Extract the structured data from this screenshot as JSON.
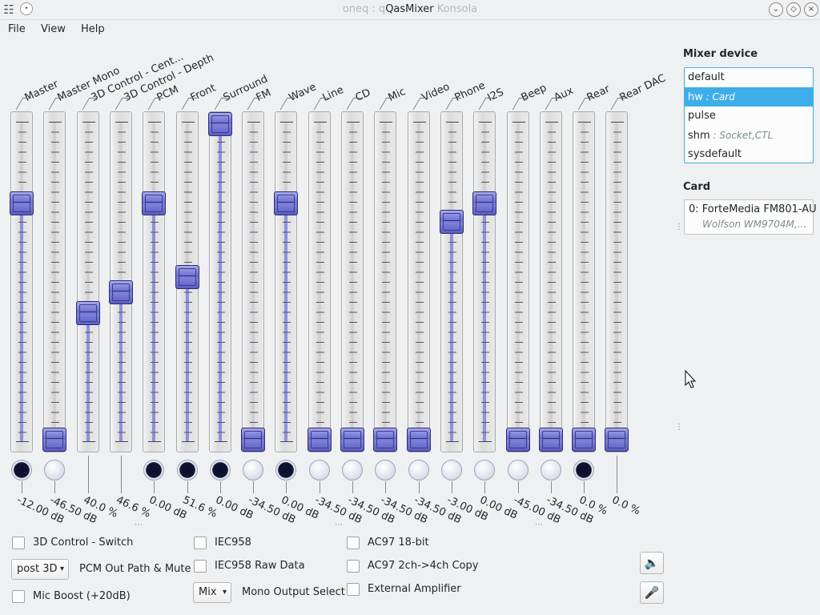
{
  "window": {
    "title_prefix": "oneq : q",
    "title": "QasMixer",
    "title_suffix": "Konsola",
    "buttons": [
      "chevron-down-icon",
      "chevron-up-icon",
      "close-icon"
    ]
  },
  "menu": {
    "file": "File",
    "view": "View",
    "help": "Help"
  },
  "channels": [
    {
      "name": "Master",
      "value": "-12.00 dB",
      "level": 0.75,
      "muted": true
    },
    {
      "name": "Master Mono",
      "value": "-46.50 dB",
      "level": 0.0,
      "muted": false
    },
    {
      "name": "3D Control - Cent...",
      "value": "40.0 %",
      "level": 0.4,
      "muted": null
    },
    {
      "name": "3D Control - Depth",
      "value": "46.6 %",
      "level": 0.466,
      "muted": null
    },
    {
      "name": "PCM",
      "value": "0.00 dB",
      "level": 0.75,
      "muted": true
    },
    {
      "name": "Front",
      "value": "51.6 %",
      "level": 0.516,
      "muted": true
    },
    {
      "name": "Surround",
      "value": "0.00 dB",
      "level": 1.0,
      "muted": true
    },
    {
      "name": "FM",
      "value": "-34.50 dB",
      "level": 0.0,
      "muted": false
    },
    {
      "name": "Wave",
      "value": "0.00 dB",
      "level": 0.75,
      "muted": true
    },
    {
      "name": "Line",
      "value": "-34.50 dB",
      "level": 0.0,
      "muted": false
    },
    {
      "name": "CD",
      "value": "-34.50 dB",
      "level": 0.0,
      "muted": false
    },
    {
      "name": "Mic",
      "value": "-34.50 dB",
      "level": 0.0,
      "muted": false
    },
    {
      "name": "Video",
      "value": "-34.50 dB",
      "level": 0.0,
      "muted": false
    },
    {
      "name": "Phone",
      "value": "-3.00 dB",
      "level": 0.69,
      "muted": false
    },
    {
      "name": "I2S",
      "value": "0.00 dB",
      "level": 0.75,
      "muted": false
    },
    {
      "name": "Beep",
      "value": "-45.00 dB",
      "level": 0.0,
      "muted": false
    },
    {
      "name": "Aux",
      "value": "-34.50 dB",
      "level": 0.0,
      "muted": false
    },
    {
      "name": "Rear",
      "value": "0.0 %",
      "level": 0.0,
      "muted": true
    },
    {
      "name": "Rear DAC",
      "value": "0.0 %",
      "level": 0.0,
      "muted": null
    }
  ],
  "switches": {
    "col1": {
      "sw3d": "3D Control - Switch",
      "combo_value": "post 3D",
      "pcm_label": "PCM Out Path & Mute",
      "mic_boost": "Mic Boost (+20dB)"
    },
    "col2": {
      "iec958": "IEC958",
      "iec958_raw": "IEC958 Raw Data",
      "combo_value": "Mix",
      "mono_label": "Mono Output Select"
    },
    "col3": {
      "ac97_18bit": "AC97 18-bit",
      "ac97_copy": "AC97 2ch->4ch Copy",
      "ext_amp": "External Amplifier"
    }
  },
  "mixer_device": {
    "heading": "Mixer device",
    "items": [
      {
        "name": "default",
        "sub": ""
      },
      {
        "name": "hw",
        "sub": " : Card",
        "selected": true
      },
      {
        "name": "pulse",
        "sub": ""
      },
      {
        "name": "shm",
        "sub": " : Socket,CTL"
      },
      {
        "name": "sysdefault",
        "sub": ""
      }
    ]
  },
  "card": {
    "heading": "Card",
    "line1": "0:  ForteMedia FM801-AU",
    "line2": "Wolfson WM9704M,..."
  },
  "colors": {
    "accent": "#3daee9",
    "knob": "#6c6fd0",
    "fill": "#8f8fe0"
  }
}
